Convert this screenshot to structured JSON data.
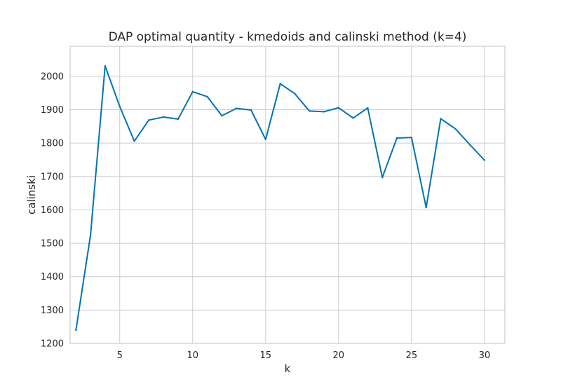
{
  "chart_data": {
    "type": "line",
    "title": "DAP optimal quantity - kmedoids and calinski method (k=4)",
    "xlabel": "k",
    "ylabel": "calinski",
    "xlim": [
      1.6,
      31.4
    ],
    "ylim": [
      1200,
      2090
    ],
    "xticks": [
      5,
      10,
      15,
      20,
      25,
      30
    ],
    "yticks": [
      1200,
      1300,
      1400,
      1500,
      1600,
      1700,
      1800,
      1900,
      2000
    ],
    "grid": true,
    "line_color": "#0072b2",
    "grid_color": "#cccccc",
    "series": [
      {
        "x": [
          2,
          3,
          4,
          5,
          6,
          7,
          8,
          9,
          10,
          11,
          12,
          13,
          14,
          15,
          16,
          17,
          18,
          19,
          20,
          21,
          22,
          23,
          24,
          25,
          26,
          27,
          28,
          29,
          30
        ],
        "values": [
          1240,
          1525,
          2031,
          1910,
          1806,
          1869,
          1878,
          1872,
          1954,
          1939,
          1882,
          1904,
          1899,
          1811,
          1978,
          1948,
          1896,
          1894,
          1906,
          1875,
          1905,
          1697,
          1815,
          1817,
          1607,
          1873,
          1843,
          1795,
          1749
        ]
      }
    ]
  }
}
